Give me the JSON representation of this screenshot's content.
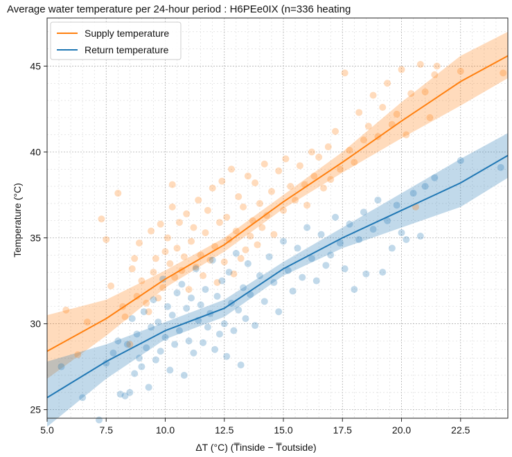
{
  "chart_data": {
    "type": "scatter",
    "title": "Average water temperature per 24-hour period : H6PEe0IX (n=336 heating",
    "xlabel": "ΔT (°C) (T̅inside − T̅outside)",
    "ylabel": "Temperature (°C)",
    "xlim": [
      5.0,
      24.5
    ],
    "ylim": [
      24.5,
      47.8
    ],
    "xticks": [
      5.0,
      7.5,
      10.0,
      12.5,
      15.0,
      17.5,
      20.0,
      22.5
    ],
    "xtick_labels": [
      "5.0",
      "7.5",
      "10.0",
      "12.5",
      "15.0",
      "17.5",
      "20.0",
      "22.5"
    ],
    "yticks": [
      25,
      30,
      35,
      40,
      45
    ],
    "ytick_labels": [
      "25",
      "30",
      "35",
      "40",
      "45"
    ],
    "grid": true,
    "legend_position": "top-left",
    "series": [
      {
        "name": "Supply temperature",
        "color": "#ff7f0e",
        "fit_line": [
          [
            5.0,
            28.4
          ],
          [
            7.5,
            30.3
          ],
          [
            10.0,
            32.6
          ],
          [
            12.5,
            34.6
          ],
          [
            15.0,
            37.1
          ],
          [
            17.5,
            39.4
          ],
          [
            20.0,
            41.8
          ],
          [
            22.5,
            44.1
          ],
          [
            24.5,
            45.6
          ]
        ],
        "ci_upper": [
          [
            5.0,
            30.5
          ],
          [
            7.5,
            31.4
          ],
          [
            10.0,
            33.1
          ],
          [
            12.5,
            35.0
          ],
          [
            15.0,
            37.5
          ],
          [
            17.5,
            40.0
          ],
          [
            20.0,
            42.9
          ],
          [
            22.5,
            45.6
          ],
          [
            24.5,
            47.0
          ]
        ],
        "ci_lower": [
          [
            5.0,
            26.8
          ],
          [
            7.5,
            29.3
          ],
          [
            10.0,
            32.1
          ],
          [
            12.5,
            34.2
          ],
          [
            15.0,
            36.7
          ],
          [
            17.5,
            38.8
          ],
          [
            20.0,
            40.8
          ],
          [
            22.5,
            42.7
          ],
          [
            24.5,
            44.3
          ]
        ],
        "points": [
          [
            5.8,
            30.8
          ],
          [
            6.3,
            28.2
          ],
          [
            6.7,
            30.1
          ],
          [
            7.3,
            36.1
          ],
          [
            7.5,
            34.9
          ],
          [
            7.7,
            32.2
          ],
          [
            8.0,
            37.6
          ],
          [
            8.2,
            31.0
          ],
          [
            8.3,
            30.4
          ],
          [
            8.5,
            28.8
          ],
          [
            8.6,
            33.2
          ],
          [
            8.7,
            33.8
          ],
          [
            8.8,
            31.6
          ],
          [
            8.9,
            34.7
          ],
          [
            9.0,
            32.5
          ],
          [
            9.2,
            31.2
          ],
          [
            9.3,
            30.7
          ],
          [
            9.4,
            35.4
          ],
          [
            9.5,
            33.0
          ],
          [
            9.6,
            33.8
          ],
          [
            9.7,
            31.5
          ],
          [
            9.8,
            35.8
          ],
          [
            9.9,
            32.1
          ],
          [
            10.0,
            34.2
          ],
          [
            10.1,
            35.0
          ],
          [
            10.2,
            33.5
          ],
          [
            10.3,
            36.8
          ],
          [
            10.3,
            38.1
          ],
          [
            10.4,
            32.7
          ],
          [
            10.5,
            34.4
          ],
          [
            10.6,
            35.9
          ],
          [
            10.7,
            33.1
          ],
          [
            10.8,
            33.9
          ],
          [
            10.9,
            36.4
          ],
          [
            11.0,
            32.0
          ],
          [
            11.1,
            34.8
          ],
          [
            11.2,
            35.6
          ],
          [
            11.3,
            33.3
          ],
          [
            11.4,
            37.2
          ],
          [
            11.5,
            34.0
          ],
          [
            11.6,
            32.8
          ],
          [
            11.7,
            35.3
          ],
          [
            11.8,
            36.6
          ],
          [
            11.9,
            33.7
          ],
          [
            12.0,
            37.9
          ],
          [
            12.1,
            34.5
          ],
          [
            12.2,
            32.4
          ],
          [
            12.3,
            35.9
          ],
          [
            12.4,
            38.3
          ],
          [
            12.5,
            33.6
          ],
          [
            12.6,
            36.2
          ],
          [
            12.7,
            34.9
          ],
          [
            12.8,
            39.0
          ],
          [
            12.9,
            32.9
          ],
          [
            13.0,
            35.4
          ],
          [
            13.1,
            37.4
          ],
          [
            13.2,
            33.8
          ],
          [
            13.3,
            36.8
          ],
          [
            13.4,
            34.3
          ],
          [
            13.5,
            38.6
          ],
          [
            13.6,
            35.1
          ],
          [
            13.7,
            36.0
          ],
          [
            13.8,
            38.2
          ],
          [
            13.9,
            34.6
          ],
          [
            14.0,
            37.0
          ],
          [
            14.1,
            35.6
          ],
          [
            14.2,
            39.3
          ],
          [
            14.3,
            36.3
          ],
          [
            14.5,
            37.7
          ],
          [
            14.6,
            35.2
          ],
          [
            14.8,
            38.9
          ],
          [
            15.0,
            36.6
          ],
          [
            15.1,
            39.6
          ],
          [
            15.3,
            38.0
          ],
          [
            15.5,
            37.2
          ],
          [
            15.7,
            39.2
          ],
          [
            15.9,
            38.1
          ],
          [
            16.0,
            36.9
          ],
          [
            16.2,
            40.0
          ],
          [
            16.3,
            38.6
          ],
          [
            16.5,
            39.7
          ],
          [
            16.7,
            37.9
          ],
          [
            16.9,
            40.3
          ],
          [
            17.0,
            38.4
          ],
          [
            17.2,
            41.2
          ],
          [
            17.4,
            39.0
          ],
          [
            17.6,
            44.6
          ],
          [
            17.8,
            40.1
          ],
          [
            18.0,
            39.4
          ],
          [
            18.2,
            42.3
          ],
          [
            18.4,
            40.7
          ],
          [
            18.6,
            41.5
          ],
          [
            18.8,
            43.3
          ],
          [
            19.0,
            40.9
          ],
          [
            19.2,
            42.6
          ],
          [
            19.4,
            44.0
          ],
          [
            19.6,
            41.6
          ],
          [
            19.8,
            42.2
          ],
          [
            20.0,
            44.8
          ],
          [
            20.2,
            41.0
          ],
          [
            20.4,
            43.4
          ],
          [
            20.6,
            36.8
          ],
          [
            20.8,
            45.1
          ],
          [
            21.0,
            43.5
          ],
          [
            21.2,
            42.0
          ],
          [
            21.4,
            44.5
          ],
          [
            21.5,
            45.0
          ],
          [
            22.5,
            44.7
          ],
          [
            24.3,
            44.6
          ]
        ]
      },
      {
        "name": "Return temperature",
        "color": "#1f77b4",
        "fit_line": [
          [
            5.0,
            25.7
          ],
          [
            7.5,
            27.8
          ],
          [
            10.0,
            29.6
          ],
          [
            12.5,
            30.9
          ],
          [
            15.0,
            33.2
          ],
          [
            17.5,
            35.0
          ],
          [
            20.0,
            36.6
          ],
          [
            22.5,
            38.2
          ],
          [
            24.5,
            39.8
          ]
        ],
        "ci_upper": [
          [
            5.0,
            27.8
          ],
          [
            7.5,
            28.8
          ],
          [
            10.0,
            30.1
          ],
          [
            12.5,
            31.4
          ],
          [
            15.0,
            33.6
          ],
          [
            17.5,
            35.6
          ],
          [
            20.0,
            37.6
          ],
          [
            22.5,
            39.6
          ],
          [
            24.5,
            41.1
          ]
        ],
        "ci_lower": [
          [
            5.0,
            24.0
          ],
          [
            7.5,
            26.8
          ],
          [
            10.0,
            29.1
          ],
          [
            12.5,
            30.4
          ],
          [
            15.0,
            32.8
          ],
          [
            17.5,
            34.4
          ],
          [
            20.0,
            35.6
          ],
          [
            22.5,
            36.8
          ],
          [
            24.5,
            38.5
          ]
        ],
        "points": [
          [
            5.6,
            27.5
          ],
          [
            6.5,
            25.7
          ],
          [
            7.2,
            24.4
          ],
          [
            7.5,
            27.7
          ],
          [
            7.8,
            28.3
          ],
          [
            8.0,
            29.0
          ],
          [
            8.1,
            25.9
          ],
          [
            8.3,
            25.8
          ],
          [
            8.4,
            28.8
          ],
          [
            8.5,
            26.0
          ],
          [
            8.6,
            30.3
          ],
          [
            8.7,
            27.1
          ],
          [
            8.8,
            29.4
          ],
          [
            8.9,
            28.0
          ],
          [
            9.0,
            27.5
          ],
          [
            9.1,
            30.7
          ],
          [
            9.2,
            28.6
          ],
          [
            9.3,
            26.3
          ],
          [
            9.4,
            29.8
          ],
          [
            9.5,
            31.4
          ],
          [
            9.6,
            27.9
          ],
          [
            9.7,
            30.1
          ],
          [
            9.8,
            28.4
          ],
          [
            9.9,
            32.6
          ],
          [
            10.0,
            29.2
          ],
          [
            10.1,
            31.0
          ],
          [
            10.2,
            27.3
          ],
          [
            10.3,
            30.5
          ],
          [
            10.4,
            28.8
          ],
          [
            10.5,
            31.8
          ],
          [
            10.6,
            29.6
          ],
          [
            10.7,
            32.3
          ],
          [
            10.8,
            27.0
          ],
          [
            10.9,
            30.9
          ],
          [
            11.0,
            29.0
          ],
          [
            11.1,
            31.5
          ],
          [
            11.2,
            28.3
          ],
          [
            11.3,
            33.2
          ],
          [
            11.4,
            30.2
          ],
          [
            11.5,
            31.1
          ],
          [
            11.6,
            28.9
          ],
          [
            11.7,
            32.0
          ],
          [
            11.8,
            29.8
          ],
          [
            11.9,
            30.6
          ],
          [
            12.0,
            33.7
          ],
          [
            12.1,
            28.5
          ],
          [
            12.2,
            31.6
          ],
          [
            12.3,
            29.4
          ],
          [
            12.4,
            32.5
          ],
          [
            12.5,
            30.0
          ],
          [
            12.6,
            28.1
          ],
          [
            12.7,
            33.0
          ],
          [
            12.8,
            31.2
          ],
          [
            12.9,
            29.6
          ],
          [
            13.0,
            34.1
          ],
          [
            13.1,
            30.8
          ],
          [
            13.2,
            27.6
          ],
          [
            13.3,
            32.1
          ],
          [
            13.4,
            30.3
          ],
          [
            13.5,
            33.5
          ],
          [
            13.6,
            31.7
          ],
          [
            13.8,
            29.9
          ],
          [
            14.0,
            32.8
          ],
          [
            14.2,
            31.3
          ],
          [
            14.4,
            33.9
          ],
          [
            14.6,
            32.4
          ],
          [
            14.8,
            30.7
          ],
          [
            15.0,
            34.8
          ],
          [
            15.2,
            33.1
          ],
          [
            15.4,
            31.9
          ],
          [
            15.6,
            34.4
          ],
          [
            15.8,
            32.7
          ],
          [
            16.0,
            35.6
          ],
          [
            16.2,
            33.8
          ],
          [
            16.4,
            32.5
          ],
          [
            16.6,
            35.2
          ],
          [
            16.8,
            33.4
          ],
          [
            17.0,
            34.0
          ],
          [
            17.2,
            36.2
          ],
          [
            17.4,
            34.7
          ],
          [
            17.6,
            33.2
          ],
          [
            17.8,
            35.8
          ],
          [
            18.0,
            32.0
          ],
          [
            18.2,
            34.9
          ],
          [
            18.4,
            36.5
          ],
          [
            18.5,
            32.9
          ],
          [
            18.8,
            35.5
          ],
          [
            19.0,
            37.2
          ],
          [
            19.2,
            33.0
          ],
          [
            19.4,
            36.0
          ],
          [
            19.6,
            34.4
          ],
          [
            19.8,
            36.9
          ],
          [
            20.0,
            35.3
          ],
          [
            20.2,
            34.9
          ],
          [
            20.5,
            37.6
          ],
          [
            20.8,
            35.1
          ],
          [
            21.0,
            38.0
          ],
          [
            21.4,
            38.5
          ],
          [
            22.5,
            39.5
          ],
          [
            24.2,
            39.1
          ]
        ]
      }
    ]
  }
}
